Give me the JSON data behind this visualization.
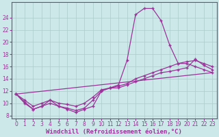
{
  "title": "Windchill (Refroidissement éolien,°C)",
  "bg_color": "#cce8e8",
  "grid_color": "#aacccc",
  "line_color": "#993399",
  "xlim": [
    -0.5,
    23.5
  ],
  "ylim": [
    7.5,
    26.5
  ],
  "xticks": [
    0,
    1,
    2,
    3,
    4,
    5,
    6,
    7,
    8,
    9,
    10,
    11,
    12,
    13,
    14,
    15,
    16,
    17,
    18,
    19,
    20,
    21,
    22,
    23
  ],
  "yticks": [
    8,
    10,
    12,
    14,
    16,
    18,
    20,
    22,
    24
  ],
  "curve1_x": [
    0,
    1,
    2,
    3,
    4,
    5,
    6,
    7,
    8,
    9,
    10,
    11,
    12,
    13,
    14,
    15,
    16,
    17,
    18,
    19,
    20,
    21,
    22,
    23
  ],
  "curve1_y": [
    11.5,
    10.0,
    9.0,
    9.5,
    10.5,
    9.5,
    9.0,
    8.5,
    9.0,
    9.5,
    12.0,
    12.5,
    13.0,
    17.0,
    24.5,
    25.5,
    25.5,
    23.5,
    19.5,
    16.5,
    16.5,
    16.0,
    15.5,
    15.0
  ],
  "curve2_x": [
    0,
    1,
    2,
    3,
    4,
    5,
    6,
    7,
    8,
    9,
    10,
    11,
    12,
    13,
    14,
    15,
    16,
    17,
    18,
    19,
    20,
    21,
    22,
    23
  ],
  "curve2_y": [
    11.5,
    10.2,
    9.0,
    9.5,
    10.0,
    9.5,
    9.2,
    8.8,
    9.2,
    10.5,
    12.0,
    12.5,
    12.5,
    13.0,
    13.5,
    14.0,
    14.5,
    15.0,
    15.2,
    15.5,
    15.8,
    17.2,
    16.2,
    15.5
  ],
  "curve3_x": [
    0,
    1,
    2,
    3,
    4,
    5,
    6,
    7,
    8,
    9,
    10,
    11,
    12,
    13,
    14,
    15,
    16,
    17,
    18,
    19,
    20,
    21,
    22,
    23
  ],
  "curve3_y": [
    11.5,
    10.5,
    9.5,
    10.0,
    10.5,
    10.0,
    9.8,
    9.5,
    10.0,
    11.0,
    12.2,
    12.5,
    12.8,
    13.2,
    14.0,
    14.5,
    15.0,
    15.5,
    16.0,
    16.5,
    16.8,
    17.0,
    16.5,
    16.0
  ],
  "curve4_x": [
    0,
    23
  ],
  "curve4_y": [
    11.5,
    15.0
  ],
  "xlabel_fontsize": 6.5,
  "tick_fontsize": 5.5
}
